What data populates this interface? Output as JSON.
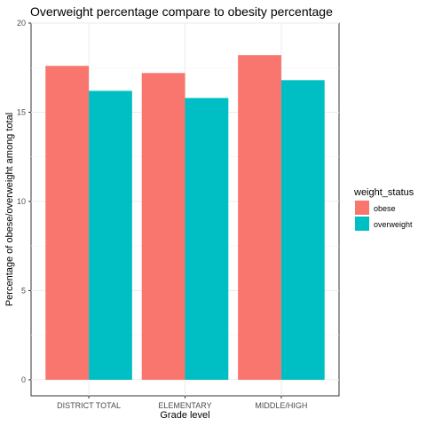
{
  "chart_data": {
    "type": "bar",
    "title": "Overweight percentage compare to obesity percentage",
    "xlabel": "Grade level",
    "ylabel": "Percentage of obese/overweight among total",
    "categories": [
      "DISTRICT TOTAL",
      "ELEMENTARY",
      "MIDDLE/HIGH"
    ],
    "series": [
      {
        "name": "obese",
        "color": "#F8766D",
        "values": [
          17.6,
          17.2,
          18.2
        ]
      },
      {
        "name": "overweight",
        "color": "#00BFC4",
        "values": [
          16.2,
          15.8,
          16.8
        ]
      }
    ],
    "ylim": [
      -0.9,
      20
    ],
    "yticks": [
      0,
      5,
      10,
      15,
      20
    ],
    "grid": true,
    "legend": {
      "title": "weight_status",
      "position": "right"
    }
  }
}
